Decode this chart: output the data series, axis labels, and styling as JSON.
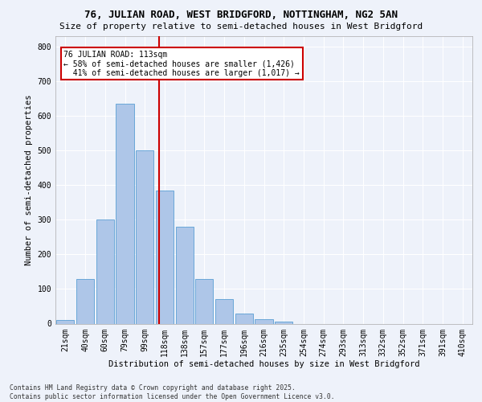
{
  "title1": "76, JULIAN ROAD, WEST BRIDGFORD, NOTTINGHAM, NG2 5AN",
  "title2": "Size of property relative to semi-detached houses in West Bridgford",
  "xlabel": "Distribution of semi-detached houses by size in West Bridgford",
  "ylabel": "Number of semi-detached properties",
  "footnote": "Contains HM Land Registry data © Crown copyright and database right 2025.\nContains public sector information licensed under the Open Government Licence v3.0.",
  "bar_labels": [
    "21sqm",
    "40sqm",
    "60sqm",
    "79sqm",
    "99sqm",
    "118sqm",
    "138sqm",
    "157sqm",
    "177sqm",
    "196sqm",
    "216sqm",
    "235sqm",
    "254sqm",
    "274sqm",
    "293sqm",
    "313sqm",
    "332sqm",
    "352sqm",
    "371sqm",
    "391sqm",
    "410sqm"
  ],
  "bar_values": [
    10,
    130,
    300,
    635,
    500,
    385,
    280,
    130,
    70,
    28,
    12,
    5,
    0,
    0,
    0,
    0,
    0,
    0,
    0,
    0,
    0
  ],
  "bar_color": "#aec6e8",
  "bar_edge_color": "#5a9fd4",
  "property_label": "76 JULIAN ROAD: 113sqm",
  "pct_smaller": 58,
  "pct_larger": 41,
  "n_smaller": 1426,
  "n_larger": 1017,
  "vline_x_index": 4.73,
  "vline_color": "#cc0000",
  "ylim": [
    0,
    830
  ],
  "yticks": [
    0,
    100,
    200,
    300,
    400,
    500,
    600,
    700,
    800
  ],
  "background_color": "#eef2fa",
  "grid_color": "#ffffff",
  "annotation_box_color": "#cc0000",
  "title1_fontsize": 9.0,
  "title2_fontsize": 8.0,
  "xlabel_fontsize": 7.5,
  "ylabel_fontsize": 7.5,
  "tick_fontsize": 7.0,
  "annot_fontsize": 7.0,
  "footnote_fontsize": 5.8
}
